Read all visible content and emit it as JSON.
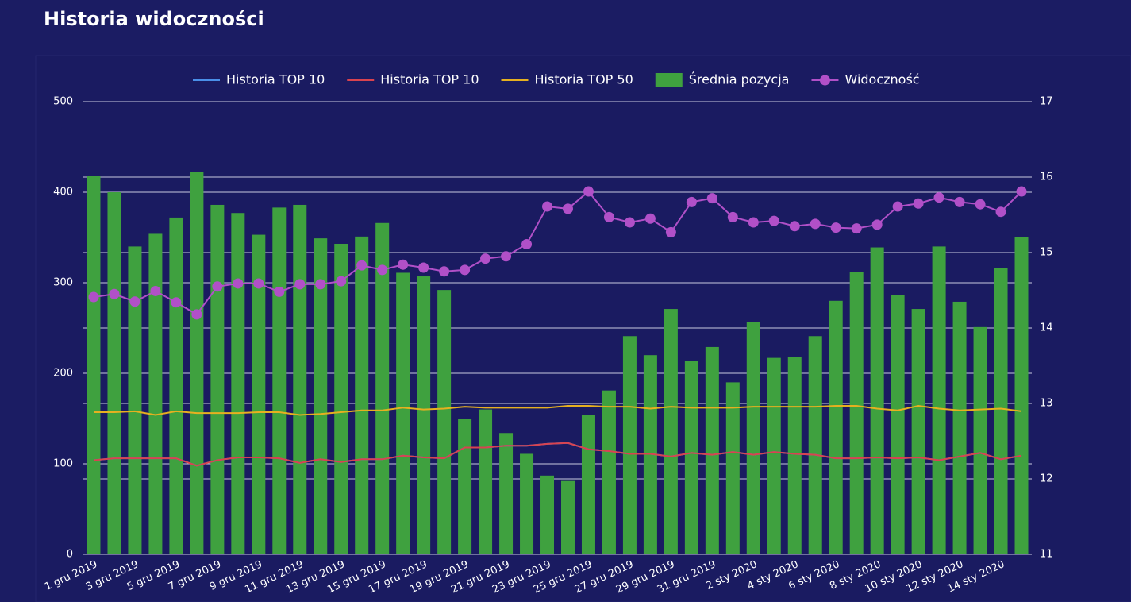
{
  "chart_data": {
    "type": "bar-line",
    "title": "Historia widoczności",
    "categories": [
      "1 gru 2019",
      null,
      "3 gru 2019",
      null,
      "5 gru 2019",
      null,
      "7 gru 2019",
      null,
      "9 gru 2019",
      null,
      "11 gru 2019",
      null,
      "13 gru 2019",
      null,
      "15 gru 2019",
      null,
      "17 gru 2019",
      null,
      "19 gru 2019",
      null,
      "21 gru 2019",
      null,
      "23 gru 2019",
      null,
      "25 gru 2019",
      null,
      "27 gru 2019",
      null,
      "29 gru 2019",
      null,
      "31 gru 2019",
      null,
      "2 sty 2020",
      null,
      "4 sty 2020",
      null,
      "6 sty 2020",
      null,
      "8 sty 2020",
      null,
      "10 sty 2020",
      null,
      "12 sty 2020",
      null,
      "14 sty 2020",
      null
    ],
    "series": [
      {
        "name": "Historia TOP 10",
        "color": "#4a8fe8",
        "kind": "line",
        "axis": "y",
        "values": [
          104,
          106,
          106,
          106,
          106,
          98,
          104,
          107,
          107,
          106,
          101,
          105,
          102,
          105,
          105,
          109,
          107,
          106,
          118,
          118,
          120,
          120,
          122,
          123,
          116,
          114,
          111,
          111,
          108,
          112,
          110,
          113,
          110,
          113,
          111,
          110,
          106,
          106,
          107,
          106,
          107,
          104,
          108,
          112,
          105,
          109
        ]
      },
      {
        "name": "Historia TOP 10",
        "color": "#d9434f",
        "kind": "line",
        "axis": "y",
        "values": [
          104,
          106,
          106,
          106,
          106,
          98,
          104,
          107,
          107,
          106,
          101,
          105,
          102,
          105,
          105,
          109,
          107,
          106,
          118,
          118,
          120,
          120,
          122,
          123,
          116,
          114,
          111,
          111,
          108,
          112,
          110,
          113,
          110,
          113,
          111,
          110,
          106,
          106,
          107,
          106,
          107,
          104,
          108,
          112,
          105,
          109
        ]
      },
      {
        "name": "Historia TOP 50",
        "color": "#e6b020",
        "kind": "line",
        "axis": "y",
        "values": [
          157,
          157,
          158,
          154,
          158,
          156,
          156,
          156,
          157,
          157,
          154,
          155,
          157,
          159,
          159,
          162,
          160,
          161,
          163,
          162,
          162,
          162,
          162,
          164,
          164,
          163,
          163,
          161,
          163,
          162,
          162,
          162,
          163,
          163,
          163,
          163,
          164,
          164,
          161,
          159,
          164,
          161,
          159,
          160,
          161,
          158
        ]
      },
      {
        "name": "Średnia pozycja",
        "color": "#3fa13f",
        "kind": "bar",
        "axis": "y",
        "values": [
          418,
          400,
          340,
          354,
          372,
          422,
          386,
          377,
          353,
          383,
          386,
          349,
          343,
          351,
          366,
          311,
          307,
          292,
          150,
          160,
          134,
          111,
          87,
          81,
          154,
          181,
          241,
          220,
          271,
          214,
          229,
          190,
          257,
          217,
          218,
          241,
          280,
          312,
          339,
          286,
          271,
          340,
          279,
          251,
          316,
          350
        ]
      },
      {
        "name": "Widoczność",
        "color": "#b150c8",
        "kind": "line-dot",
        "axis": "y2",
        "values": [
          14.41,
          14.45,
          14.35,
          14.49,
          14.34,
          14.18,
          14.55,
          14.59,
          14.59,
          14.48,
          14.58,
          14.58,
          14.62,
          14.83,
          14.77,
          14.84,
          14.8,
          14.75,
          14.77,
          14.92,
          14.95,
          15.11,
          15.61,
          15.58,
          15.81,
          15.47,
          15.4,
          15.45,
          15.27,
          15.67,
          15.72,
          15.47,
          15.4,
          15.42,
          15.35,
          15.38,
          15.33,
          15.32,
          15.37,
          15.61,
          15.65,
          15.73,
          15.67,
          15.64,
          15.54,
          15.81
        ]
      }
    ],
    "ylim": [
      0,
      500
    ],
    "yticks": [
      0,
      100,
      200,
      300,
      400,
      500
    ],
    "y2lim": [
      11,
      17
    ],
    "y2ticks": [
      11,
      12,
      13,
      14,
      15,
      16,
      17
    ],
    "grid": true,
    "legend": "top"
  }
}
